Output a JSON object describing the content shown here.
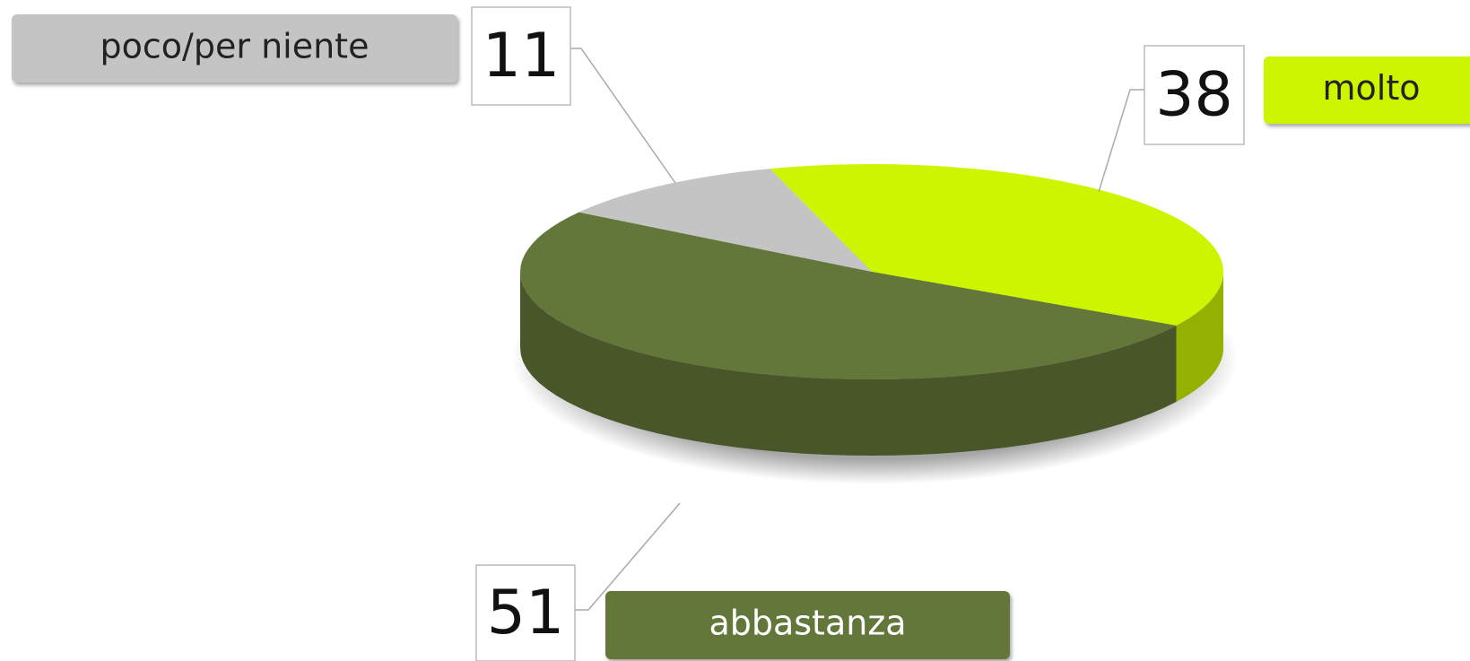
{
  "chart_data": {
    "type": "pie",
    "categories": [
      "molto",
      "abbastanza",
      "poco/per niente"
    ],
    "values": [
      38,
      51,
      11
    ],
    "colors": [
      "#cdf500",
      "#64773a",
      "#c4c4c4"
    ]
  }
}
